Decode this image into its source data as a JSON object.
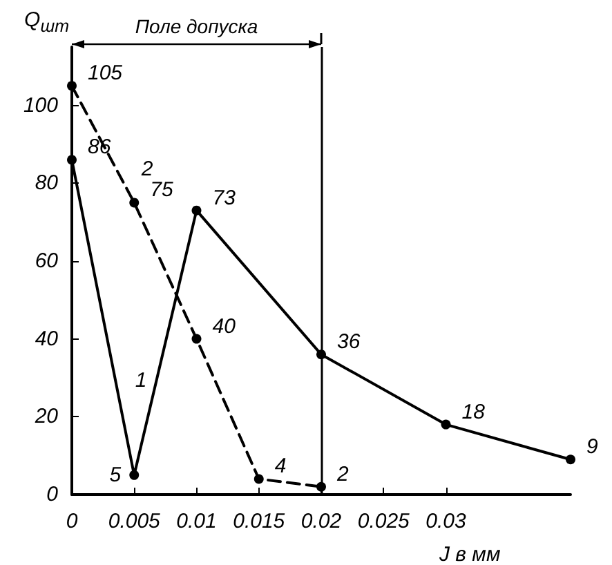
{
  "chart_data": {
    "type": "line",
    "xlabel": "J в мм",
    "ylabel": "Q$_{шт}$",
    "xlim": [
      0,
      0.04
    ],
    "xticks": [
      0,
      0.005,
      0.01,
      0.015,
      0.02,
      0.025,
      0.03
    ],
    "ylim": [
      0,
      115
    ],
    "yticks": [
      0,
      20,
      40,
      60,
      80,
      100
    ],
    "grid": false,
    "marker": "circle",
    "annotations": [
      "Поле допуска"
    ],
    "ref_lines": [
      {
        "axis": "x",
        "value": 0.02,
        "label": null
      }
    ],
    "series": [
      {
        "name": "1",
        "color": "#000000",
        "line_style": "solid",
        "x": [
          0,
          0.005,
          0.01,
          0.02,
          0.03,
          0.04
        ],
        "values": [
          86,
          5,
          73,
          36,
          18,
          9
        ],
        "value_labels": [
          "86",
          "5",
          "73",
          "36",
          "18",
          "9"
        ]
      },
      {
        "name": "2",
        "color": "#000000",
        "line_style": "dashed",
        "x": [
          0,
          0.005,
          0.01,
          0.015,
          0.02
        ],
        "values": [
          105,
          75,
          40,
          4,
          2
        ],
        "value_labels": [
          "105",
          "75",
          "40",
          "4",
          "2"
        ]
      }
    ]
  }
}
